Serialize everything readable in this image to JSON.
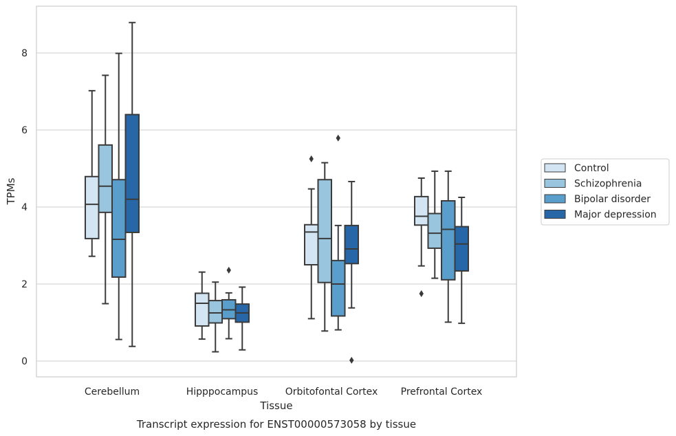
{
  "caption": "Transcript expression for ENST00000573058 by tissue",
  "chart_data": {
    "type": "boxplot",
    "xlabel": "Tissue",
    "ylabel": "TPMs",
    "ylim": [
      -0.4,
      9.3
    ],
    "yticks": [
      0,
      2,
      4,
      6,
      8
    ],
    "grid": "horizontal",
    "legend_position": "right",
    "categories": [
      "Cerebellum",
      "Hipppocampus",
      "Orbitofontal Cortex",
      "Prefrontal Cortex"
    ],
    "series": [
      {
        "name": "Control",
        "color": "#d3e4f3",
        "boxes": [
          {
            "whisker_low": 2.72,
            "q1": 3.18,
            "median": 4.07,
            "q3": 4.79,
            "whisker_high": 7.02,
            "outliers": []
          },
          {
            "whisker_low": 0.57,
            "q1": 0.91,
            "median": 1.5,
            "q3": 1.76,
            "whisker_high": 2.31,
            "outliers": []
          },
          {
            "whisker_low": 1.1,
            "q1": 2.5,
            "median": 3.35,
            "q3": 3.54,
            "whisker_high": 4.47,
            "outliers": [
              5.25
            ]
          },
          {
            "whisker_low": 2.47,
            "q1": 3.53,
            "median": 3.76,
            "q3": 4.27,
            "whisker_high": 4.75,
            "outliers": [
              1.75
            ]
          }
        ]
      },
      {
        "name": "Schizophrenia",
        "color": "#9ac5df",
        "boxes": [
          {
            "whisker_low": 1.49,
            "q1": 3.86,
            "median": 4.54,
            "q3": 5.61,
            "whisker_high": 7.42,
            "outliers": []
          },
          {
            "whisker_low": 0.24,
            "q1": 0.99,
            "median": 1.25,
            "q3": 1.57,
            "whisker_high": 2.05,
            "outliers": []
          },
          {
            "whisker_low": 0.78,
            "q1": 2.04,
            "median": 3.18,
            "q3": 4.71,
            "whisker_high": 5.15,
            "outliers": []
          },
          {
            "whisker_low": 2.15,
            "q1": 2.93,
            "median": 3.32,
            "q3": 3.83,
            "whisker_high": 4.93,
            "outliers": []
          }
        ]
      },
      {
        "name": "Bipolar disorder",
        "color": "#5a9ecb",
        "boxes": [
          {
            "whisker_low": 0.56,
            "q1": 2.18,
            "median": 3.16,
            "q3": 4.71,
            "whisker_high": 7.99,
            "outliers": []
          },
          {
            "whisker_low": 0.58,
            "q1": 1.1,
            "median": 1.33,
            "q3": 1.59,
            "whisker_high": 1.77,
            "outliers": [
              2.36
            ]
          },
          {
            "whisker_low": 0.81,
            "q1": 1.17,
            "median": 2.0,
            "q3": 2.61,
            "whisker_high": 3.52,
            "outliers": [
              5.79
            ]
          },
          {
            "whisker_low": 1.01,
            "q1": 2.11,
            "median": 3.42,
            "q3": 4.16,
            "whisker_high": 4.93,
            "outliers": []
          }
        ]
      },
      {
        "name": "Major depression",
        "color": "#2767a8",
        "boxes": [
          {
            "whisker_low": 0.38,
            "q1": 3.34,
            "median": 4.2,
            "q3": 6.4,
            "whisker_high": 8.79,
            "outliers": []
          },
          {
            "whisker_low": 0.29,
            "q1": 1.01,
            "median": 1.25,
            "q3": 1.48,
            "whisker_high": 1.92,
            "outliers": []
          },
          {
            "whisker_low": 1.38,
            "q1": 2.53,
            "median": 2.91,
            "q3": 3.52,
            "whisker_high": 4.66,
            "outliers": [
              0.02
            ]
          },
          {
            "whisker_low": 0.98,
            "q1": 2.34,
            "median": 3.04,
            "q3": 3.49,
            "whisker_high": 4.25,
            "outliers": []
          }
        ]
      }
    ]
  }
}
